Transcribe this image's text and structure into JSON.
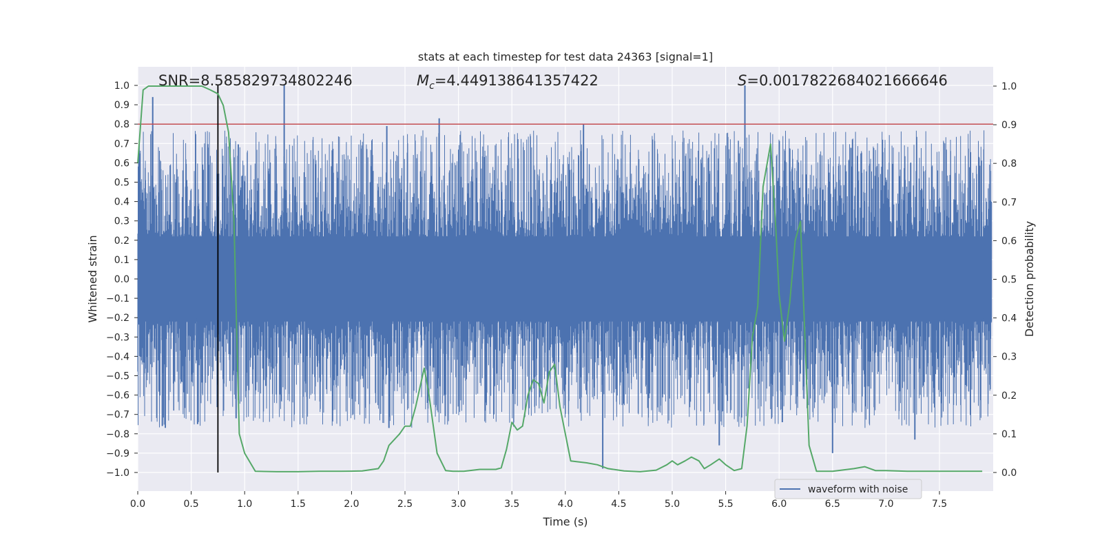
{
  "chart_data": {
    "type": "line",
    "title": "stats at each timestep for test data 24363 [signal=1]",
    "xlabel": "Time (s)",
    "ylabel": "Whitened strain",
    "y2label": "Detection probability",
    "xlim": [
      0,
      8
    ],
    "ylim": [
      -1.1,
      1.1
    ],
    "y2lim": [
      -0.05,
      1.05
    ],
    "xticks": [
      "0.0",
      "0.5",
      "1.0",
      "1.5",
      "2.0",
      "2.5",
      "3.0",
      "3.5",
      "4.0",
      "4.5",
      "5.0",
      "5.5",
      "6.0",
      "6.5",
      "7.0",
      "7.5"
    ],
    "yticks": [
      "1.0",
      "0.9",
      "0.8",
      "0.7",
      "0.6",
      "0.5",
      "0.4",
      "0.3",
      "0.2",
      "0.1",
      "0.0",
      "−0.1",
      "−0.2",
      "−0.3",
      "−0.4",
      "−0.5",
      "−0.6",
      "−0.7",
      "−0.8",
      "−0.9",
      "−1.0"
    ],
    "y2ticks": [
      "1.0",
      "0.9",
      "0.8",
      "0.7",
      "0.6",
      "0.5",
      "0.4",
      "0.3",
      "0.2",
      "0.1",
      "0.0"
    ],
    "grid": true,
    "legend_position": "lower-right",
    "annotations": {
      "snr": "SNR=8.585829734802246",
      "mc_symbol": "M",
      "mc_sub": "c",
      "mc_value": "=4.449138641357422",
      "s_symbol": "S",
      "s_value": "=0.0017822684021666646"
    },
    "threshold_line": {
      "value": 0.8,
      "axis": "left",
      "color": "#c44e52"
    },
    "marker_line": {
      "x": 0.75,
      "y_from": -1.0,
      "y_to": 1.0,
      "color": "#000000"
    },
    "series": [
      {
        "name": "waveform with noise",
        "axis": "left",
        "color": "#4c72b0",
        "style": "noise",
        "envelope_top": 0.42,
        "envelope_bottom": -0.42,
        "spikes": [
          {
            "x": 0.14,
            "y": 0.94
          },
          {
            "x": 1.37,
            "y": 1.0
          },
          {
            "x": 2.33,
            "y": 0.79
          },
          {
            "x": 2.82,
            "y": 0.83
          },
          {
            "x": 4.17,
            "y": 0.8
          },
          {
            "x": 5.68,
            "y": 1.0
          },
          {
            "x": 0.23,
            "y": -0.76
          },
          {
            "x": 0.56,
            "y": -0.75
          },
          {
            "x": 0.92,
            "y": -0.72
          },
          {
            "x": 2.35,
            "y": -0.77
          },
          {
            "x": 4.35,
            "y": -0.98
          },
          {
            "x": 5.44,
            "y": -0.86
          },
          {
            "x": 6.03,
            "y": -0.74
          },
          {
            "x": 6.5,
            "y": -0.9
          },
          {
            "x": 7.27,
            "y": -0.83
          }
        ]
      },
      {
        "name": "detection probability",
        "axis": "right",
        "color": "#55a868",
        "x": [
          0.0,
          0.05,
          0.1,
          0.2,
          0.4,
          0.6,
          0.68,
          0.75,
          0.8,
          0.85,
          0.9,
          0.95,
          1.0,
          1.1,
          1.3,
          1.5,
          1.7,
          1.9,
          2.1,
          2.25,
          2.3,
          2.35,
          2.45,
          2.5,
          2.55,
          2.6,
          2.68,
          2.72,
          2.8,
          2.88,
          2.95,
          3.05,
          3.2,
          3.35,
          3.4,
          3.45,
          3.5,
          3.55,
          3.6,
          3.65,
          3.7,
          3.75,
          3.8,
          3.85,
          3.9,
          3.95,
          4.05,
          4.2,
          4.3,
          4.4,
          4.55,
          4.7,
          4.85,
          4.95,
          5.0,
          5.05,
          5.12,
          5.18,
          5.25,
          5.3,
          5.36,
          5.44,
          5.5,
          5.58,
          5.65,
          5.7,
          5.75,
          5.8,
          5.85,
          5.92,
          5.97,
          6.0,
          6.05,
          6.1,
          6.15,
          6.2,
          6.28,
          6.35,
          6.5,
          6.7,
          6.8,
          6.9,
          7.0,
          7.2,
          7.5,
          7.9
        ],
        "y": [
          0.8,
          0.99,
          1.0,
          1.0,
          1.0,
          1.0,
          0.99,
          0.98,
          0.95,
          0.88,
          0.65,
          0.1,
          0.05,
          0.003,
          0.002,
          0.002,
          0.003,
          0.003,
          0.004,
          0.01,
          0.03,
          0.07,
          0.1,
          0.12,
          0.12,
          0.17,
          0.27,
          0.21,
          0.05,
          0.005,
          0.003,
          0.003,
          0.008,
          0.008,
          0.012,
          0.06,
          0.13,
          0.11,
          0.12,
          0.2,
          0.24,
          0.23,
          0.18,
          0.26,
          0.28,
          0.17,
          0.03,
          0.025,
          0.02,
          0.01,
          0.004,
          0.002,
          0.006,
          0.02,
          0.03,
          0.02,
          0.03,
          0.04,
          0.03,
          0.01,
          0.02,
          0.035,
          0.02,
          0.005,
          0.01,
          0.12,
          0.35,
          0.43,
          0.74,
          0.85,
          0.63,
          0.46,
          0.34,
          0.44,
          0.6,
          0.65,
          0.07,
          0.003,
          0.003,
          0.01,
          0.015,
          0.005,
          0.005,
          0.003,
          0.003,
          0.003
        ]
      }
    ]
  }
}
